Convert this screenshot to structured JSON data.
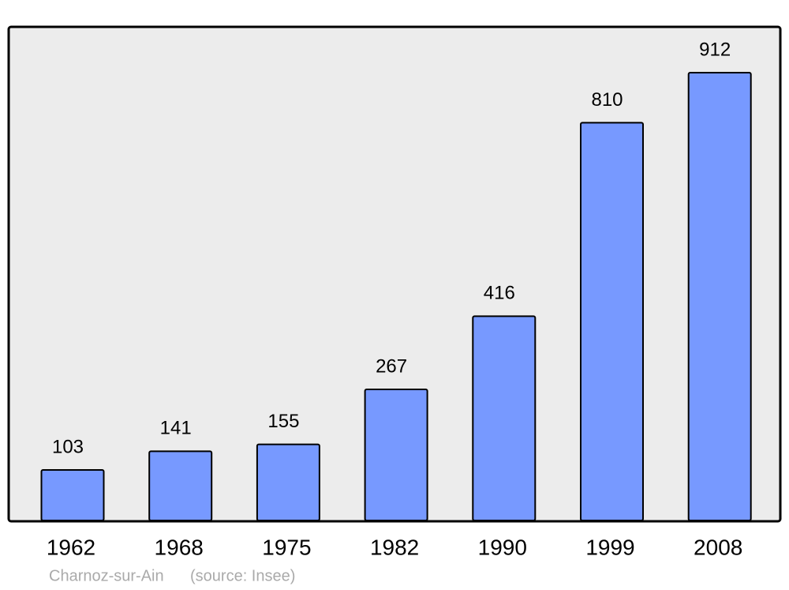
{
  "chart_data": {
    "type": "bar",
    "categories": [
      "1962",
      "1968",
      "1975",
      "1982",
      "1990",
      "1999",
      "2008"
    ],
    "values": [
      103,
      141,
      155,
      267,
      416,
      810,
      912
    ],
    "color": "#7799ff",
    "footer": {
      "place": "Charnoz-sur-Ain",
      "source": "(source: Insee)"
    }
  }
}
